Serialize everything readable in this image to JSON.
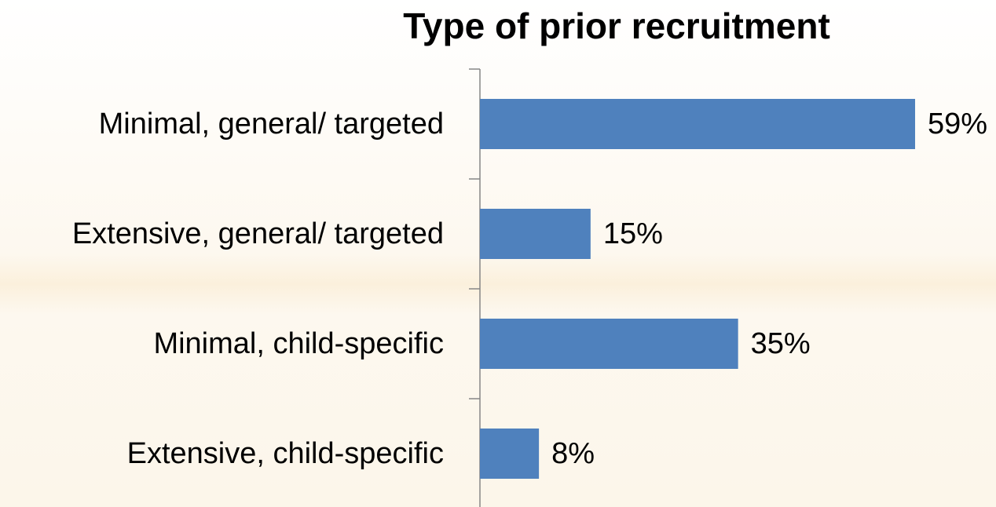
{
  "chart_data": {
    "type": "bar",
    "orientation": "horizontal",
    "title": "Type of prior recruitment",
    "categories": [
      "Minimal, general/ targeted",
      "Extensive, general/ targeted",
      "Minimal, child-specific",
      "Extensive, child-specific"
    ],
    "values": [
      59,
      15,
      35,
      8
    ],
    "value_labels": [
      "59%",
      "15%",
      "35%",
      "8%"
    ],
    "color": "#4f81bd"
  }
}
